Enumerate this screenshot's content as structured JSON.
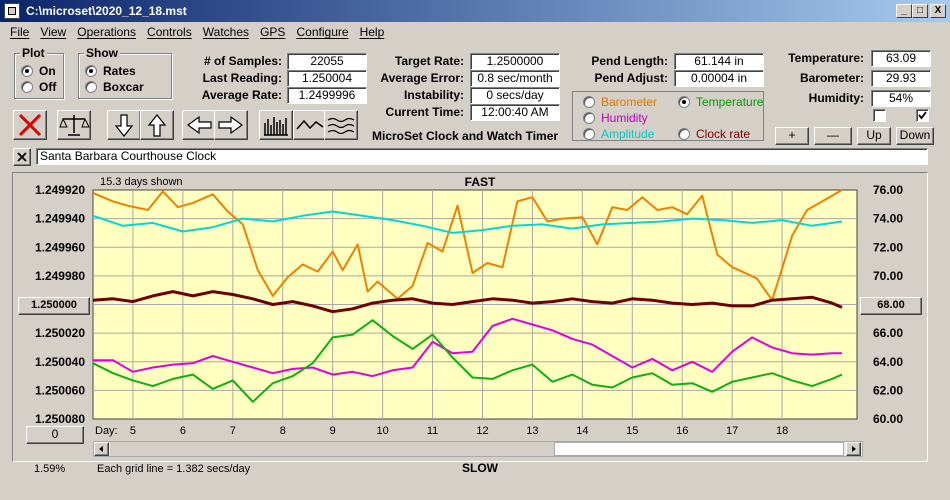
{
  "window": {
    "title": "C:\\microset\\2020_12_18.mst",
    "buttons": [
      "_",
      "□",
      "X"
    ]
  },
  "menu": [
    "File",
    "View",
    "Operations",
    "Controls",
    "Watches",
    "GPS",
    "Configure",
    "Help"
  ],
  "plot_group": {
    "title": "Plot",
    "options": [
      "On",
      "Off"
    ],
    "selected": "On"
  },
  "show_group": {
    "title": "Show",
    "options": [
      "Rates",
      "Boxcar"
    ],
    "selected": "Rates"
  },
  "stats": {
    "samples_label": "# of Samples:",
    "samples": "22055",
    "last_label": "Last Reading:",
    "last": "1.250004",
    "avg_label": "Average Rate:",
    "avg": "1.2499996",
    "target_label": "Target Rate:",
    "target": "1.2500000",
    "avgerr_label": "Average Error:",
    "avgerr": "0.8 sec/month",
    "instab_label": "Instability:",
    "instab": "0 secs/day",
    "time_label": "Current Time:",
    "time": "12:00:40 AM",
    "pendlen_label": "Pend Length:",
    "pendlen": "61.144 in",
    "pendadj_label": "Pend Adjust:",
    "pendadj": "0.00004 in",
    "temp_label": "Temperature:",
    "temp": "63.09",
    "baro_label": "Barometer:",
    "baro": "29.93",
    "hum_label": "Humidity:",
    "hum": "54%"
  },
  "app_caption": "MicroSet Clock and Watch Timer",
  "sensor_select": {
    "options": [
      {
        "label": "Barometer",
        "color": "#e07800",
        "selected": false
      },
      {
        "label": "Temperature",
        "color": "#00a000",
        "selected": true
      },
      {
        "label": "Humidity",
        "color": "#c000c0",
        "selected": false
      },
      {
        "label": "Clock rate",
        "color": "#800000",
        "selected": false
      },
      {
        "label": "Amplitude",
        "color": "#00c8c8",
        "selected": false
      }
    ]
  },
  "adjust_buttons": [
    "+",
    "—",
    "Up",
    "Down"
  ],
  "clock_name": "Santa Barbara Courthouse Clock",
  "chart_data": {
    "type": "line",
    "title": "FAST",
    "bottom_label": "SLOW",
    "days_shown": "15.3 days shown",
    "grid_note": "Each grid line = 1.382 secs/day",
    "left_axis_ticks": [
      "1.249920",
      "1.249940",
      "1.249960",
      "1.249980",
      "1.250000",
      "1.250020",
      "1.250040",
      "1.250060",
      "1.250080"
    ],
    "right_axis_ticks": [
      "76.00",
      "74.00",
      "72.00",
      "70.00",
      "68.00",
      "66.00",
      "64.00",
      "62.00",
      "60.00"
    ],
    "left_center_button": "1.250000",
    "right_center_button": "68.00",
    "x_label": "Day:",
    "x_ticks": [
      "5",
      "6",
      "7",
      "8",
      "9",
      "10",
      "11",
      "12",
      "13",
      "14",
      "15",
      "16",
      "17",
      "18"
    ],
    "x_start": 4.2,
    "x_end": 19.5,
    "left_range": [
      1.24992,
      1.25008
    ],
    "right_range": [
      60,
      76
    ],
    "series": [
      {
        "color": "#f08000",
        "unit": "right",
        "x": [
          4.2,
          4.6,
          4.9,
          5.3,
          5.6,
          5.9,
          6.2,
          6.6,
          6.9,
          7.2,
          7.5,
          7.8,
          8.1,
          8.4,
          8.7,
          9.0,
          9.2,
          9.5,
          9.7,
          9.9,
          10.3,
          10.6,
          10.9,
          11.2,
          11.5,
          11.8,
          12.1,
          12.4,
          12.7,
          13.0,
          13.3,
          13.6,
          14.0,
          14.3,
          14.6,
          14.9,
          15.2,
          15.5,
          15.8,
          16.1,
          16.4,
          16.7,
          17.0,
          17.2,
          17.5,
          17.8,
          18.0,
          18.2,
          18.5,
          18.9,
          19.2
        ],
        "values": [
          75.8,
          75.2,
          74.9,
          74.6,
          75.9,
          74.8,
          75.1,
          75.7,
          74.5,
          73.6,
          70.4,
          68.6,
          69.9,
          70.8,
          70.3,
          71.7,
          70.4,
          72.2,
          68.9,
          69.6,
          68.4,
          69.3,
          72.3,
          71.7,
          74.9,
          70.2,
          70.9,
          70.6,
          75.2,
          75.5,
          73.8,
          74.0,
          74.1,
          72.2,
          74.8,
          74.6,
          75.5,
          74.6,
          74.8,
          74.3,
          75.6,
          71.5,
          70.6,
          70.3,
          69.8,
          68.3,
          70.5,
          72.8,
          74.6,
          75.4,
          76.0
        ]
      },
      {
        "color": "#00d8d8",
        "unit": "right",
        "x": [
          4.2,
          4.8,
          5.4,
          6.0,
          6.6,
          7.2,
          7.8,
          8.4,
          9.0,
          9.6,
          10.2,
          10.8,
          11.4,
          12.0,
          12.6,
          13.2,
          13.8,
          14.4,
          15.0,
          15.6,
          16.2,
          16.8,
          17.4,
          18.0,
          18.6,
          19.2
        ],
        "values": [
          74.2,
          73.5,
          73.7,
          73.1,
          73.4,
          74.0,
          73.8,
          74.2,
          74.5,
          74.2,
          73.9,
          73.5,
          73.0,
          73.2,
          73.5,
          73.6,
          73.3,
          73.6,
          73.7,
          73.8,
          74.0,
          73.9,
          73.7,
          73.9,
          73.5,
          73.8
        ]
      },
      {
        "color": "#6e0000",
        "unit": "right",
        "x": [
          4.2,
          4.6,
          5.0,
          5.4,
          5.8,
          6.2,
          6.6,
          7.0,
          7.4,
          7.8,
          8.2,
          8.6,
          9.0,
          9.4,
          9.8,
          10.2,
          10.6,
          11.0,
          11.4,
          11.8,
          12.2,
          12.6,
          13.0,
          13.4,
          13.8,
          14.2,
          14.6,
          15.0,
          15.4,
          15.8,
          16.2,
          16.6,
          17.0,
          17.4,
          17.8,
          18.2,
          18.6,
          19.0,
          19.2
        ],
        "values": [
          68.3,
          68.4,
          68.2,
          68.6,
          68.9,
          68.6,
          68.9,
          68.7,
          68.4,
          68.0,
          68.2,
          67.9,
          67.5,
          67.7,
          68.1,
          68.3,
          68.4,
          68.1,
          68.0,
          68.2,
          68.4,
          68.3,
          68.1,
          68.2,
          68.4,
          68.2,
          68.1,
          68.4,
          68.3,
          68.1,
          68.0,
          68.1,
          67.9,
          67.9,
          68.3,
          68.4,
          68.5,
          68.1,
          67.8
        ]
      },
      {
        "color": "#e000e0",
        "unit": "right",
        "x": [
          4.2,
          4.6,
          5.0,
          5.4,
          5.8,
          6.2,
          6.6,
          7.0,
          7.4,
          7.8,
          8.2,
          8.6,
          9.0,
          9.4,
          9.8,
          10.2,
          10.6,
          11.0,
          11.4,
          11.8,
          12.2,
          12.6,
          13.0,
          13.4,
          13.8,
          14.2,
          14.6,
          15.0,
          15.4,
          15.8,
          16.2,
          16.6,
          17.0,
          17.4,
          17.8,
          18.2,
          18.6,
          19.0,
          19.2
        ],
        "values": [
          64.1,
          64.1,
          63.3,
          63.6,
          63.8,
          63.9,
          64.4,
          64.0,
          63.6,
          63.2,
          63.5,
          63.6,
          63.1,
          63.3,
          63.0,
          63.4,
          63.6,
          65.4,
          64.6,
          64.7,
          66.5,
          67.0,
          66.6,
          66.2,
          65.6,
          65.2,
          64.4,
          63.6,
          64.2,
          63.4,
          64.0,
          63.3,
          64.7,
          65.7,
          65.0,
          64.6,
          64.5,
          64.6,
          64.6
        ]
      },
      {
        "color": "#10b010",
        "unit": "right",
        "x": [
          4.2,
          4.6,
          5.0,
          5.4,
          5.8,
          6.2,
          6.6,
          7.0,
          7.4,
          7.8,
          8.2,
          8.6,
          9.0,
          9.4,
          9.8,
          10.2,
          10.6,
          11.0,
          11.4,
          11.8,
          12.2,
          12.6,
          13.0,
          13.4,
          13.8,
          14.2,
          14.6,
          15.0,
          15.4,
          15.8,
          16.2,
          16.6,
          17.0,
          17.4,
          17.8,
          18.2,
          18.6,
          19.0,
          19.2
        ],
        "values": [
          63.9,
          63.2,
          62.7,
          62.3,
          62.8,
          63.1,
          62.1,
          62.7,
          61.2,
          62.5,
          63.0,
          63.9,
          65.7,
          65.9,
          66.9,
          65.8,
          64.9,
          65.9,
          64.3,
          62.9,
          62.8,
          63.4,
          63.8,
          62.6,
          63.1,
          62.4,
          62.2,
          62.9,
          63.2,
          62.4,
          62.5,
          61.9,
          62.6,
          62.9,
          63.2,
          62.7,
          62.3,
          62.8,
          63.1
        ]
      }
    ]
  },
  "footer": {
    "percent": "1.59%",
    "zero_button": "0"
  }
}
